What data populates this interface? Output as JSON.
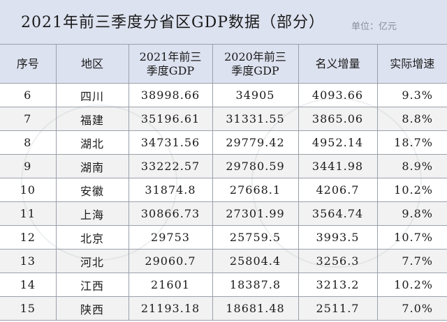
{
  "title": "2021年前三季度分省区GDP数据（部分）",
  "unit": "单位：亿元",
  "table": {
    "headers": [
      "序号",
      "地区",
      "2021年前三季度GDP",
      "2020年前三季度GDP",
      "名义增量",
      "实际增速"
    ],
    "rows": [
      [
        "6",
        "四川",
        "38998.66",
        "34905",
        "4093.66",
        "9.3%"
      ],
      [
        "7",
        "福建",
        "35196.61",
        "31331.55",
        "3865.06",
        "8.8%"
      ],
      [
        "8",
        "湖北",
        "34731.56",
        "29779.42",
        "4952.14",
        "18.7%"
      ],
      [
        "9",
        "湖南",
        "33222.57",
        "29780.59",
        "3441.98",
        "8.9%"
      ],
      [
        "10",
        "安徽",
        "31874.8",
        "27668.1",
        "4206.7",
        "10.2%"
      ],
      [
        "11",
        "上海",
        "30866.73",
        "27301.99",
        "3564.74",
        "9.8%"
      ],
      [
        "12",
        "北京",
        "29753",
        "25759.5",
        "3993.5",
        "10.7%"
      ],
      [
        "13",
        "河北",
        "29060.7",
        "25804.4",
        "3256.3",
        "7.7%"
      ],
      [
        "14",
        "江西",
        "21601",
        "18387.8",
        "3213.2",
        "10.2%"
      ],
      [
        "15",
        "陕西",
        "21193.18",
        "18681.48",
        "2511.7",
        "7.0%"
      ]
    ]
  }
}
